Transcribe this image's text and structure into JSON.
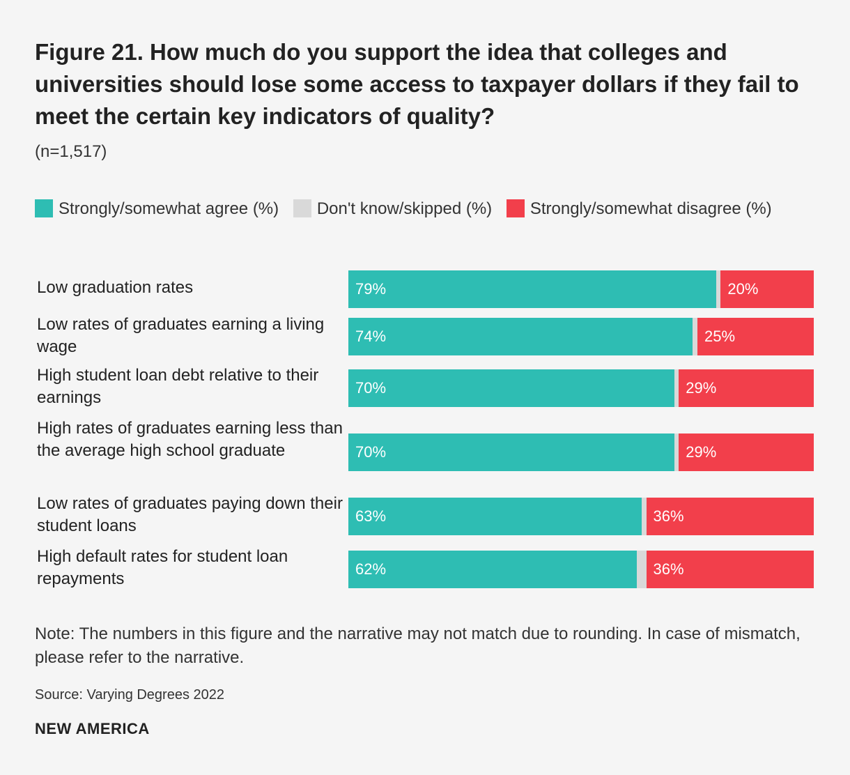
{
  "title": "Figure 21. How much do you support the idea that colleges and universities should lose some access to taxpayer dollars if they fail to meet the certain key indicators of quality?",
  "subtitle": "(n=1,517)",
  "legend": [
    {
      "label": "Strongly/somewhat agree (%)",
      "color": "#2ebdb3"
    },
    {
      "label": "Don't know/skipped (%)",
      "color": "#d9d9d9"
    },
    {
      "label": "Strongly/somewhat disagree (%)",
      "color": "#f23f4b"
    }
  ],
  "note": "Note: The numbers in this figure and the narrative may not match due to rounding. In case of mismatch, please refer to the narrative.",
  "source": "Source: Varying Degrees 2022",
  "brand": "NEW AMERICA",
  "chart_data": {
    "type": "bar",
    "orientation": "horizontal",
    "stacked": true,
    "categories": [
      "Low graduation rates",
      "Low rates of graduates earning a living wage",
      "High student loan debt relative to their earnings",
      "High rates of graduates earning less than the average high school graduate",
      "Low rates of graduates paying down their student loans",
      "High default rates for student loan repayments"
    ],
    "series": [
      {
        "name": "Strongly/somewhat agree (%)",
        "color": "#2ebdb3",
        "values": [
          79,
          74,
          70,
          70,
          63,
          62
        ],
        "labels": [
          "79%",
          "74%",
          "70%",
          "70%",
          "63%",
          "62%"
        ]
      },
      {
        "name": "Don't know/skipped (%)",
        "color": "#d9d9d9",
        "values": [
          1,
          1,
          1,
          1,
          1,
          2
        ]
      },
      {
        "name": "Strongly/somewhat disagree (%)",
        "color": "#f23f4b",
        "values": [
          20,
          25,
          29,
          29,
          36,
          36
        ],
        "labels": [
          "20%",
          "25%",
          "29%",
          "29%",
          "36%",
          "36%"
        ]
      }
    ],
    "xlim": [
      0,
      100
    ],
    "grid": false,
    "legend_position": "top-left"
  }
}
